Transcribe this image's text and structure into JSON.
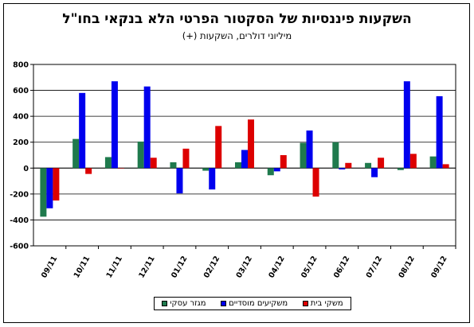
{
  "chart_data": {
    "type": "bar",
    "title": "השקעות פיננסיות של הסקטור הפרטי הלא בנקאי בחו\"ל",
    "subtitle": "מיליוני דולרים, השקעות (+)",
    "categories": [
      "09/11",
      "10/11",
      "11/11",
      "12/11",
      "01/12",
      "02/12",
      "03/12",
      "04/12",
      "05/12",
      "06/12",
      "07/12",
      "08/12",
      "09/12"
    ],
    "ylim": [
      -600,
      800
    ],
    "yticks": [
      -600,
      -400,
      -200,
      0,
      200,
      400,
      600,
      800
    ],
    "grid": true,
    "legend_position": "bottom",
    "series": [
      {
        "name": "מגזר עסקי",
        "color": "#1f7a4d",
        "values": [
          -375,
          225,
          85,
          205,
          45,
          -20,
          45,
          -55,
          195,
          200,
          40,
          -15,
          90
        ]
      },
      {
        "name": "משקיעים מוסדיים",
        "color": "#0000ee",
        "values": [
          -310,
          580,
          670,
          630,
          -195,
          -165,
          140,
          -25,
          290,
          -10,
          -70,
          670,
          555
        ]
      },
      {
        "name": "משקי בית",
        "color": "#dd0000",
        "values": [
          -250,
          -45,
          0,
          80,
          150,
          325,
          375,
          100,
          -220,
          40,
          80,
          110,
          30
        ]
      }
    ]
  }
}
